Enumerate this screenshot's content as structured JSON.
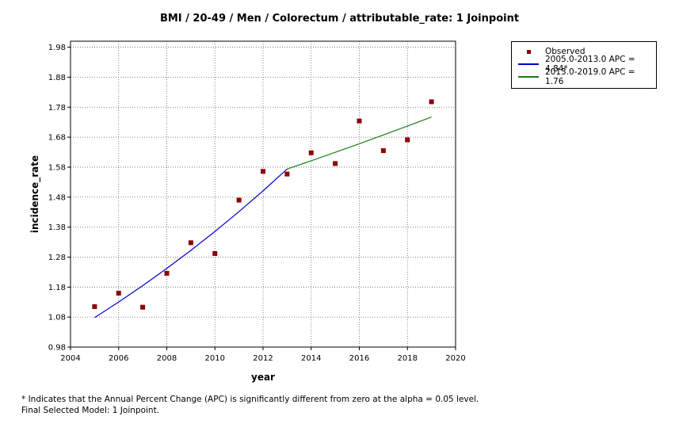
{
  "chart_data": {
    "type": "scatter",
    "title": "BMI / 20-49  / Men / Colorectum / attributable_rate: 1 Joinpoint",
    "xlabel": "year",
    "ylabel": "incidence_rate",
    "xlim": [
      2004,
      2020
    ],
    "ylim": [
      0.98,
      2.0
    ],
    "xticks": [
      "2004",
      "2006",
      "2008",
      "2010",
      "2012",
      "2014",
      "2016",
      "2018",
      "2020"
    ],
    "yticks": [
      "0.98",
      "1.08",
      "1.18",
      "1.28",
      "1.38",
      "1.48",
      "1.58",
      "1.68",
      "1.78",
      "1.88",
      "1.98"
    ],
    "grid": true,
    "legend_position": "top-right, outside plot",
    "series": [
      {
        "name": "Observed",
        "kind": "points",
        "color": "#8b0000",
        "x": [
          2005,
          2006,
          2007,
          2008,
          2009,
          2010,
          2011,
          2012,
          2013,
          2014,
          2015,
          2016,
          2017,
          2018,
          2019
        ],
        "y": [
          1.115,
          1.16,
          1.113,
          1.226,
          1.328,
          1.292,
          1.47,
          1.566,
          1.557,
          1.628,
          1.592,
          1.734,
          1.635,
          1.671,
          1.798
        ]
      },
      {
        "name": "2005.0-2013.0 APC  = 4.84*",
        "kind": "line",
        "color": "#0000cc",
        "x": [
          2005,
          2006,
          2007,
          2008,
          2009,
          2010,
          2011,
          2012,
          2013
        ],
        "y": [
          1.078,
          1.1302,
          1.1849,
          1.2423,
          1.3024,
          1.3655,
          1.4316,
          1.5009,
          1.5736
        ]
      },
      {
        "name": "2013.0-2019.0 APC  = 1.76",
        "kind": "line",
        "color": "#1a7a1a",
        "x": [
          2013,
          2014,
          2015,
          2016,
          2017,
          2018,
          2019
        ],
        "y": [
          1.5736,
          1.6013,
          1.6295,
          1.6581,
          1.6873,
          1.717,
          1.7472
        ]
      }
    ]
  },
  "footnote": {
    "line1": "* Indicates that the Annual Percent Change (APC) is significantly different from zero at the alpha = 0.05 level.",
    "line2": "Final Selected Model: 1 Joinpoint."
  }
}
